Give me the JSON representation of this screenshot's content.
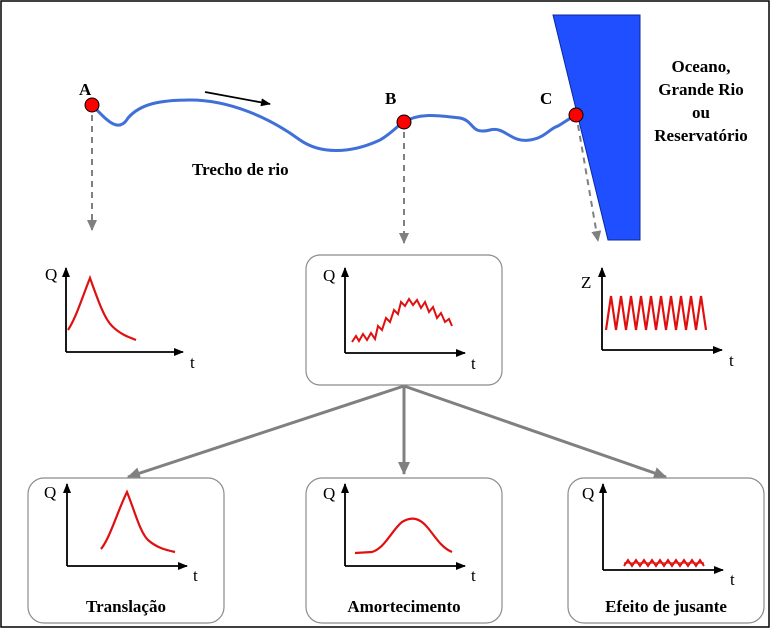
{
  "colors": {
    "river": "#3f6fd8",
    "point_fill": "#ff0000",
    "curve": "#e01010",
    "reservoir": "#1f4fff",
    "dashed_arrow": "#808080",
    "solid_arrow": "#808080",
    "box_border": "#8c8c8c"
  },
  "points": {
    "a": "A",
    "b": "B",
    "c": "C"
  },
  "river_label": "Trecho de rio",
  "water_body_label": [
    "Oceano,",
    "Grande Rio",
    "ou",
    "Reservatório"
  ],
  "graphs": {
    "a": {
      "y_axis": "Q",
      "x_axis": "t"
    },
    "b": {
      "y_axis": "Q",
      "x_axis": "t"
    },
    "c": {
      "y_axis": "Z",
      "x_axis": "t"
    },
    "translacao": {
      "y_axis": "Q",
      "x_axis": "t",
      "caption": "Translação"
    },
    "amortecimento": {
      "y_axis": "Q",
      "x_axis": "t",
      "caption": "Amortecimento"
    },
    "jusante": {
      "y_axis": "Q",
      "x_axis": "t",
      "caption": "Efeito de jusante"
    }
  }
}
